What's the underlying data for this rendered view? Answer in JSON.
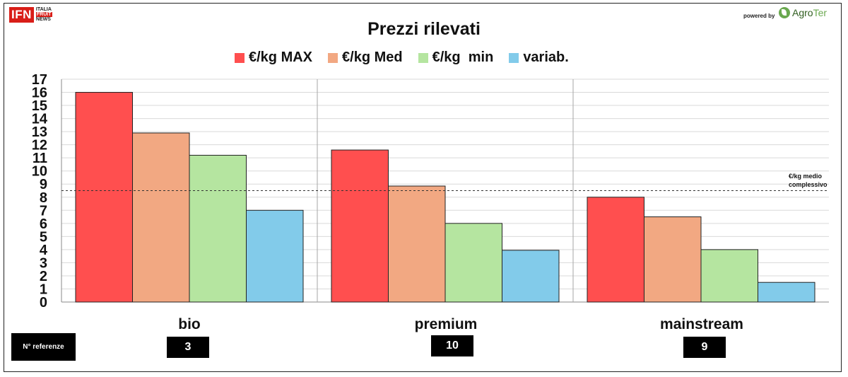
{
  "branding": {
    "ifn_text": "IFN",
    "ifn_sub_1": "ITALIA",
    "ifn_sub_2": "FRUIT",
    "ifn_sub_3": "NEWS",
    "powered_by": "powered by",
    "agroter_a": "Agro",
    "agroter_b": "Ter"
  },
  "chart_data": {
    "type": "bar",
    "title": "Prezzi rilevati",
    "categories": [
      "bio",
      "premium",
      "mainstream"
    ],
    "series": [
      {
        "name": "€/kg MAX",
        "color": "#ff4f4f",
        "values": [
          16.0,
          11.6,
          8.0
        ]
      },
      {
        "name": "€/kg Med",
        "color": "#f2a882",
        "values": [
          12.9,
          8.85,
          6.5
        ]
      },
      {
        "name": "€/kg  min",
        "color": "#b5e5a0",
        "values": [
          11.2,
          6.0,
          4.0
        ]
      },
      {
        "name": "variab.",
        "color": "#82cbea",
        "values": [
          7.0,
          3.95,
          1.5
        ]
      }
    ],
    "ylim": [
      0,
      17
    ],
    "yticks": [
      "0",
      "1",
      "2",
      "3",
      "4",
      "5",
      "6",
      "7",
      "8",
      "9",
      "10",
      "11",
      "12",
      "13",
      "14",
      "15",
      "16",
      "17"
    ],
    "grid": true,
    "legend": "top",
    "reference_line": {
      "value": 8.5,
      "label_1": "€/kg medio",
      "label_2": "complessivo"
    }
  },
  "references": {
    "label": "N° referenze",
    "values": [
      "3",
      "10",
      "9"
    ]
  }
}
